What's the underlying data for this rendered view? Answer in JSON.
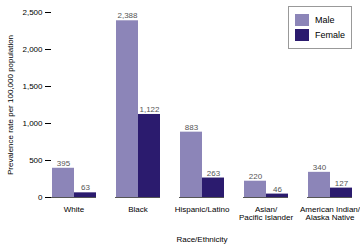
{
  "chart_data": {
    "type": "bar",
    "x_label": "Race/Ethnicity",
    "y_label": "Prevalence rate per 100,000 population",
    "categories": [
      "White",
      "Black",
      "Hispanic/Latino",
      "Asian/Pacific Islander",
      "American Indian/Alaska Native"
    ],
    "series": [
      {
        "name": "Male",
        "color": "#8c85b8",
        "values": [
          395,
          2388,
          883,
          220,
          340
        ],
        "value_labels": [
          "395",
          "2,388",
          "883",
          "220",
          "340"
        ]
      },
      {
        "name": "Female",
        "color": "#2b1b6e",
        "values": [
          63,
          1122,
          263,
          46,
          127
        ],
        "value_labels": [
          "63",
          "1,122",
          "263",
          "46",
          "127"
        ]
      }
    ],
    "ylim": [
      0,
      2500
    ],
    "yticks": [
      0,
      500,
      {
        "value": 1000,
        "label": "1,000"
      },
      {
        "value": 1500,
        "label": "1,500"
      },
      {
        "value": 2000,
        "label": "2,000"
      },
      {
        "value": 2500,
        "label": "2,500"
      }
    ],
    "grid": false,
    "legend": "top-right",
    "data_labels": true
  }
}
